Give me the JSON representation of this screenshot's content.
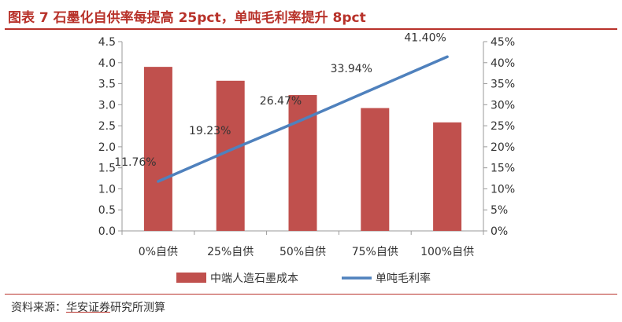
{
  "figure": {
    "title": "图表 7  石墨化自供率每提高 25pct，单吨毛利率提升 8pct",
    "source_prefix": "资料来源：",
    "source_org": "华安证券",
    "source_suffix": "研究所测算"
  },
  "colors": {
    "bar": "#c0504d",
    "line": "#4f81bd",
    "title": "#b8322a",
    "axis": "#9a9a9a"
  },
  "chart_data": {
    "type": "bar",
    "categories": [
      "0%自供",
      "25%自供",
      "50%自供",
      "75%自供",
      "100%自供"
    ],
    "series": [
      {
        "name": "中端人造石墨成本",
        "type": "bar",
        "axis": "left",
        "values": [
          3.9,
          3.57,
          3.23,
          2.92,
          2.58
        ]
      },
      {
        "name": "单吨毛利率",
        "type": "line",
        "axis": "right",
        "values": [
          11.76,
          19.23,
          26.47,
          33.94,
          41.4
        ],
        "labels": [
          "11.76%",
          "19.23%",
          "26.47%",
          "33.94%",
          "41.40%"
        ]
      }
    ],
    "left_axis": {
      "ylim": [
        0,
        4.5
      ],
      "ticks": [
        "0.0",
        "0.5",
        "1.0",
        "1.5",
        "2.0",
        "2.5",
        "3.0",
        "3.5",
        "4.0",
        "4.5"
      ]
    },
    "right_axis": {
      "ylim": [
        0,
        45
      ],
      "ticks": [
        "0%",
        "5%",
        "10%",
        "15%",
        "20%",
        "25%",
        "30%",
        "35%",
        "40%",
        "45%"
      ]
    },
    "legend": {
      "position": "bottom"
    },
    "grid": false
  }
}
